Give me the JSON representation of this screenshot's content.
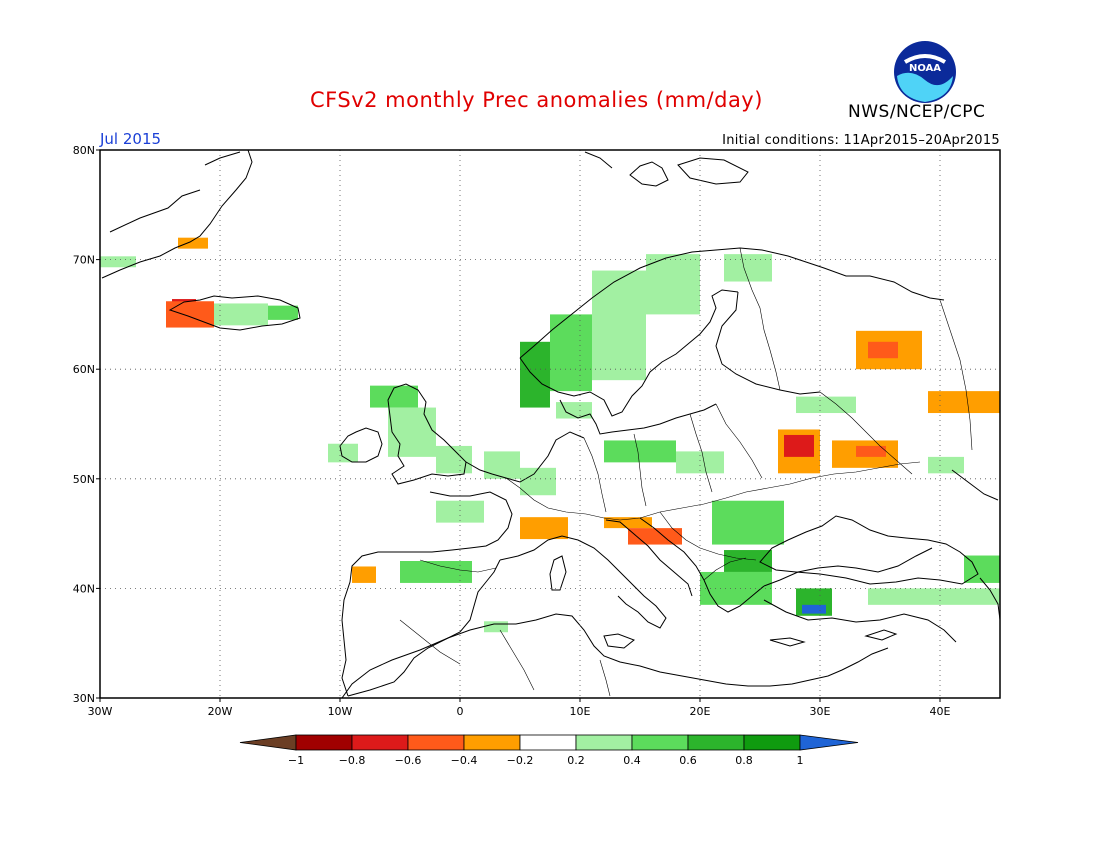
{
  "title": "CFSv2 monthly Prec anomalies (mm/day)",
  "org": "NWS/NCEP/CPC",
  "logo_text": "NOAA",
  "month": "Jul 2015",
  "initial_conditions": "Initial conditions: 11Apr2015–20Apr2015",
  "map": {
    "lon_range": [
      -30,
      45
    ],
    "lat_range": [
      30,
      80
    ],
    "lon_labels": [
      "30W",
      "20W",
      "10W",
      "0",
      "10E",
      "20E",
      "30E",
      "40E"
    ],
    "lat_labels": [
      "80N",
      "70N",
      "60N",
      "50N",
      "40N",
      "30N"
    ]
  },
  "colorbar": {
    "labels": [
      "−1",
      "−0.8",
      "−0.6",
      "−0.4",
      "−0.2",
      "0.2",
      "0.4",
      "0.6",
      "0.8",
      "1"
    ],
    "colors": [
      "#6b3e24",
      "#a00000",
      "#dd1a1a",
      "#ff5a1a",
      "#ff9e00",
      "#ffffff",
      "#a2f0a2",
      "#5cdc5c",
      "#2cb42c",
      "#0f9b0f",
      "#1f64d6"
    ]
  },
  "chart_data": {
    "type": "heatmap",
    "title": "CFSv2 monthly Prec anomalies (mm/day)",
    "units": "mm/day",
    "region_lon": [
      -30,
      45
    ],
    "region_lat": [
      30,
      80
    ],
    "bin_edges": [
      -1,
      -0.8,
      -0.6,
      -0.4,
      -0.2,
      0.2,
      0.4,
      0.6,
      0.8,
      1
    ],
    "cells": [
      {
        "lon": [
          -23.5,
          -21.0
        ],
        "lat": [
          71.0,
          72.0
        ],
        "v": -0.3
      },
      {
        "lon": [
          -30.0,
          -27.0
        ],
        "lat": [
          69.3,
          70.3
        ],
        "v": 0.3
      },
      {
        "lon": [
          -24.0,
          -22.0
        ],
        "lat": [
          65.8,
          66.4
        ],
        "v": -0.7
      },
      {
        "lon": [
          -24.5,
          -20.5
        ],
        "lat": [
          63.8,
          66.2
        ],
        "v": -0.5
      },
      {
        "lon": [
          -20.5,
          -16.0
        ],
        "lat": [
          64.0,
          66.0
        ],
        "v": 0.3
      },
      {
        "lon": [
          -16.0,
          -13.5
        ],
        "lat": [
          64.5,
          65.8
        ],
        "v": 0.5
      },
      {
        "lon": [
          -11.0,
          -8.5
        ],
        "lat": [
          51.5,
          53.2
        ],
        "v": 0.3
      },
      {
        "lon": [
          -7.5,
          -3.5
        ],
        "lat": [
          56.5,
          58.5
        ],
        "v": 0.5
      },
      {
        "lon": [
          -6.0,
          -2.0
        ],
        "lat": [
          52.0,
          56.5
        ],
        "v": 0.3
      },
      {
        "lon": [
          -2.0,
          1.0
        ],
        "lat": [
          50.5,
          53.0
        ],
        "v": 0.3
      },
      {
        "lon": [
          2.0,
          5.0
        ],
        "lat": [
          50.0,
          52.5
        ],
        "v": 0.3
      },
      {
        "lon": [
          -2.0,
          2.0
        ],
        "lat": [
          46.0,
          48.0
        ],
        "v": 0.3
      },
      {
        "lon": [
          5.0,
          8.0
        ],
        "lat": [
          48.5,
          51.0
        ],
        "v": 0.3
      },
      {
        "lon": [
          5.0,
          7.5
        ],
        "lat": [
          56.5,
          62.5
        ],
        "v": 0.6
      },
      {
        "lon": [
          7.5,
          11.0
        ],
        "lat": [
          58.0,
          65.0
        ],
        "v": 0.4
      },
      {
        "lon": [
          8.0,
          11.0
        ],
        "lat": [
          55.5,
          57.0
        ],
        "v": 0.3
      },
      {
        "lon": [
          11.0,
          15.5
        ],
        "lat": [
          59.0,
          69.0
        ],
        "v": 0.3
      },
      {
        "lon": [
          15.5,
          20.0
        ],
        "lat": [
          65.0,
          70.5
        ],
        "v": 0.3
      },
      {
        "lon": [
          22.0,
          26.0
        ],
        "lat": [
          68.0,
          70.5
        ],
        "v": 0.3
      },
      {
        "lon": [
          12.0,
          18.0
        ],
        "lat": [
          51.5,
          53.5
        ],
        "v": 0.4
      },
      {
        "lon": [
          18.0,
          22.0
        ],
        "lat": [
          50.5,
          52.5
        ],
        "v": 0.3
      },
      {
        "lon": [
          5.0,
          9.0
        ],
        "lat": [
          44.5,
          46.5
        ],
        "v": -0.3
      },
      {
        "lon": [
          12.0,
          16.0
        ],
        "lat": [
          45.5,
          46.5
        ],
        "v": -0.3
      },
      {
        "lon": [
          14.0,
          18.5
        ],
        "lat": [
          44.0,
          45.5
        ],
        "v": -0.5
      },
      {
        "lon": [
          -9.0,
          -7.0
        ],
        "lat": [
          40.5,
          42.0
        ],
        "v": -0.3
      },
      {
        "lon": [
          -5.0,
          1.0
        ],
        "lat": [
          40.5,
          42.5
        ],
        "v": 0.4
      },
      {
        "lon": [
          2.0,
          4.0
        ],
        "lat": [
          36.0,
          37.0
        ],
        "v": 0.3
      },
      {
        "lon": [
          21.0,
          27.0
        ],
        "lat": [
          44.0,
          48.0
        ],
        "v": 0.5
      },
      {
        "lon": [
          22.0,
          26.0
        ],
        "lat": [
          41.5,
          43.5
        ],
        "v": 0.6
      },
      {
        "lon": [
          20.0,
          26.0
        ],
        "lat": [
          38.5,
          41.5
        ],
        "v": 0.4
      },
      {
        "lon": [
          28.0,
          31.0
        ],
        "lat": [
          37.5,
          40.0
        ],
        "v": 0.7
      },
      {
        "lon": [
          28.5,
          30.5
        ],
        "lat": [
          37.7,
          38.5
        ],
        "v": 1.2
      },
      {
        "lon": [
          26.5,
          30.0
        ],
        "lat": [
          50.5,
          54.5
        ],
        "v": -0.4
      },
      {
        "lon": [
          27.0,
          29.5
        ],
        "lat": [
          52.0,
          54.0
        ],
        "v": -0.8
      },
      {
        "lon": [
          31.0,
          36.5
        ],
        "lat": [
          51.0,
          53.5
        ],
        "v": -0.4
      },
      {
        "lon": [
          33.0,
          35.5
        ],
        "lat": [
          52.0,
          53.0
        ],
        "v": -0.6
      },
      {
        "lon": [
          33.0,
          38.5
        ],
        "lat": [
          60.0,
          63.5
        ],
        "v": -0.4
      },
      {
        "lon": [
          34.0,
          36.5
        ],
        "lat": [
          61.0,
          62.5
        ],
        "v": -0.6
      },
      {
        "lon": [
          39.0,
          45.0
        ],
        "lat": [
          56.0,
          58.0
        ],
        "v": -0.3
      },
      {
        "lon": [
          39.0,
          42.0
        ],
        "lat": [
          50.5,
          52.0
        ],
        "v": 0.3
      },
      {
        "lon": [
          42.0,
          45.0
        ],
        "lat": [
          40.5,
          43.0
        ],
        "v": 0.5
      },
      {
        "lon": [
          34.0,
          45.0
        ],
        "lat": [
          38.5,
          40.0
        ],
        "v": 0.3
      },
      {
        "lon": [
          28.0,
          33.0
        ],
        "lat": [
          56.0,
          57.5
        ],
        "v": 0.3
      }
    ]
  }
}
